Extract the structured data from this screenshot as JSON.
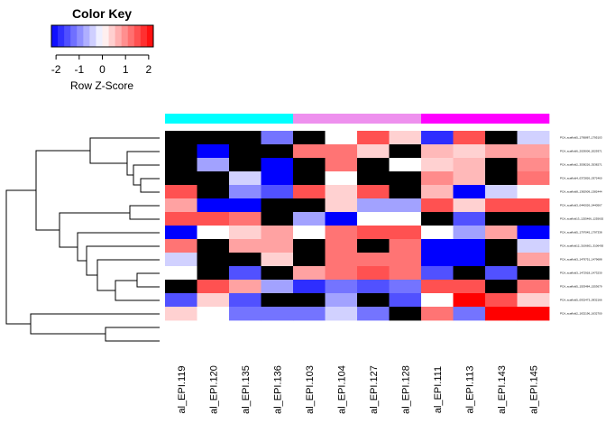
{
  "chart_data": {
    "type": "heatmap",
    "color_key": {
      "title": "Color Key",
      "label": "Row Z-Score",
      "ticks": [
        "-2",
        "-1",
        "0",
        "1",
        "2"
      ],
      "range": [
        -2.2,
        2.2
      ],
      "low_color": "#0000ff",
      "mid_color": "#ffffff",
      "high_color": "#ff0000"
    },
    "columns": [
      "al_EPI.119",
      "al_EPI.120",
      "al_EPI.135",
      "al_EPI.136",
      "al_EPI.103",
      "al_EPI.104",
      "al_EPI.127",
      "al_EPI.128",
      "al_EPI.111",
      "al_EPI.113",
      "al_EPI.143",
      "al_EPI.145"
    ],
    "column_groups": [
      {
        "color": "#00ffff",
        "columns": [
          0,
          1,
          2,
          3
        ]
      },
      {
        "color": "#ee90ee",
        "columns": [
          4,
          5,
          6,
          7
        ]
      },
      {
        "color": "#ff00ff",
        "columns": [
          8,
          9,
          10,
          11
        ]
      }
    ],
    "rows": [
      "PCA_scaffold5_1795887_1795103",
      "PCA_scaffold6_2029006_2029371",
      "PCA_scaffold2_3538226_3538271",
      "PCA_scaffold4_0372826_0372460",
      "PCA_scaffold8_1382909_1382444",
      "PCA_scaffold3_0440026_0440567",
      "PCA_scaffold13_1255466_1255602",
      "PCA_scaffold5_1797045_1797338",
      "PCA_scaffold12_3106601_3106430",
      "PCA_scaffold3_1479751_1479688",
      "PCA_scaffold3_1472918_1473230",
      "PCA_scaffold5_1553484_1553679",
      "PCA_scaffold5_0932473_0932166",
      "PCA_scaffold2_1632196_1632700"
    ],
    "values": [
      [
        null,
        null,
        null,
        -1.2,
        null,
        0.0,
        1.5,
        0.4,
        -1.8,
        1.5,
        null,
        -0.4
      ],
      [
        null,
        -2.2,
        null,
        null,
        1.2,
        1.2,
        0.4,
        null,
        0.6,
        0.4,
        0.8,
        0.8
      ],
      [
        null,
        -0.8,
        null,
        -2.2,
        null,
        1.2,
        null,
        0.0,
        0.4,
        0.6,
        null,
        1.0
      ],
      [
        null,
        null,
        -0.4,
        -2.2,
        null,
        0.0,
        null,
        null,
        1.0,
        0.6,
        null,
        1.2
      ],
      [
        1.5,
        null,
        -1.0,
        -1.5,
        1.5,
        0.4,
        1.5,
        null,
        0.6,
        -2.2,
        -0.4,
        0.0
      ],
      [
        0.8,
        -2.2,
        -2.2,
        null,
        null,
        0.4,
        -0.8,
        -0.8,
        1.5,
        0.4,
        1.5,
        1.5
      ],
      [
        1.5,
        1.5,
        1.2,
        null,
        -0.8,
        -2.2,
        0.0,
        0.0,
        null,
        -1.5,
        null,
        null
      ],
      [
        -2.2,
        0.0,
        0.4,
        0.8,
        0.0,
        1.2,
        1.5,
        1.5,
        0.0,
        -0.8,
        0.8,
        -2.2
      ],
      [
        1.2,
        null,
        0.8,
        0.8,
        null,
        1.2,
        null,
        1.2,
        -2.2,
        -2.2,
        null,
        -0.4
      ],
      [
        -0.4,
        null,
        null,
        0.4,
        null,
        1.2,
        1.2,
        1.2,
        -2.2,
        -2.2,
        null,
        0.8
      ],
      [
        0.0,
        null,
        -1.5,
        null,
        0.8,
        1.2,
        1.5,
        1.2,
        -1.5,
        null,
        -1.5,
        null
      ],
      [
        null,
        1.5,
        0.8,
        -0.8,
        -1.8,
        -1.2,
        -1.5,
        -1.2,
        1.5,
        1.5,
        null,
        1.2
      ],
      [
        -1.5,
        0.4,
        -1.5,
        null,
        null,
        -0.8,
        null,
        -1.5,
        0.0,
        2.2,
        1.5,
        0.4
      ],
      [
        0.4,
        0.0,
        -1.2,
        -1.2,
        -1.2,
        -0.4,
        -1.2,
        null,
        1.2,
        -1.2,
        2.2,
        2.2
      ]
    ]
  }
}
